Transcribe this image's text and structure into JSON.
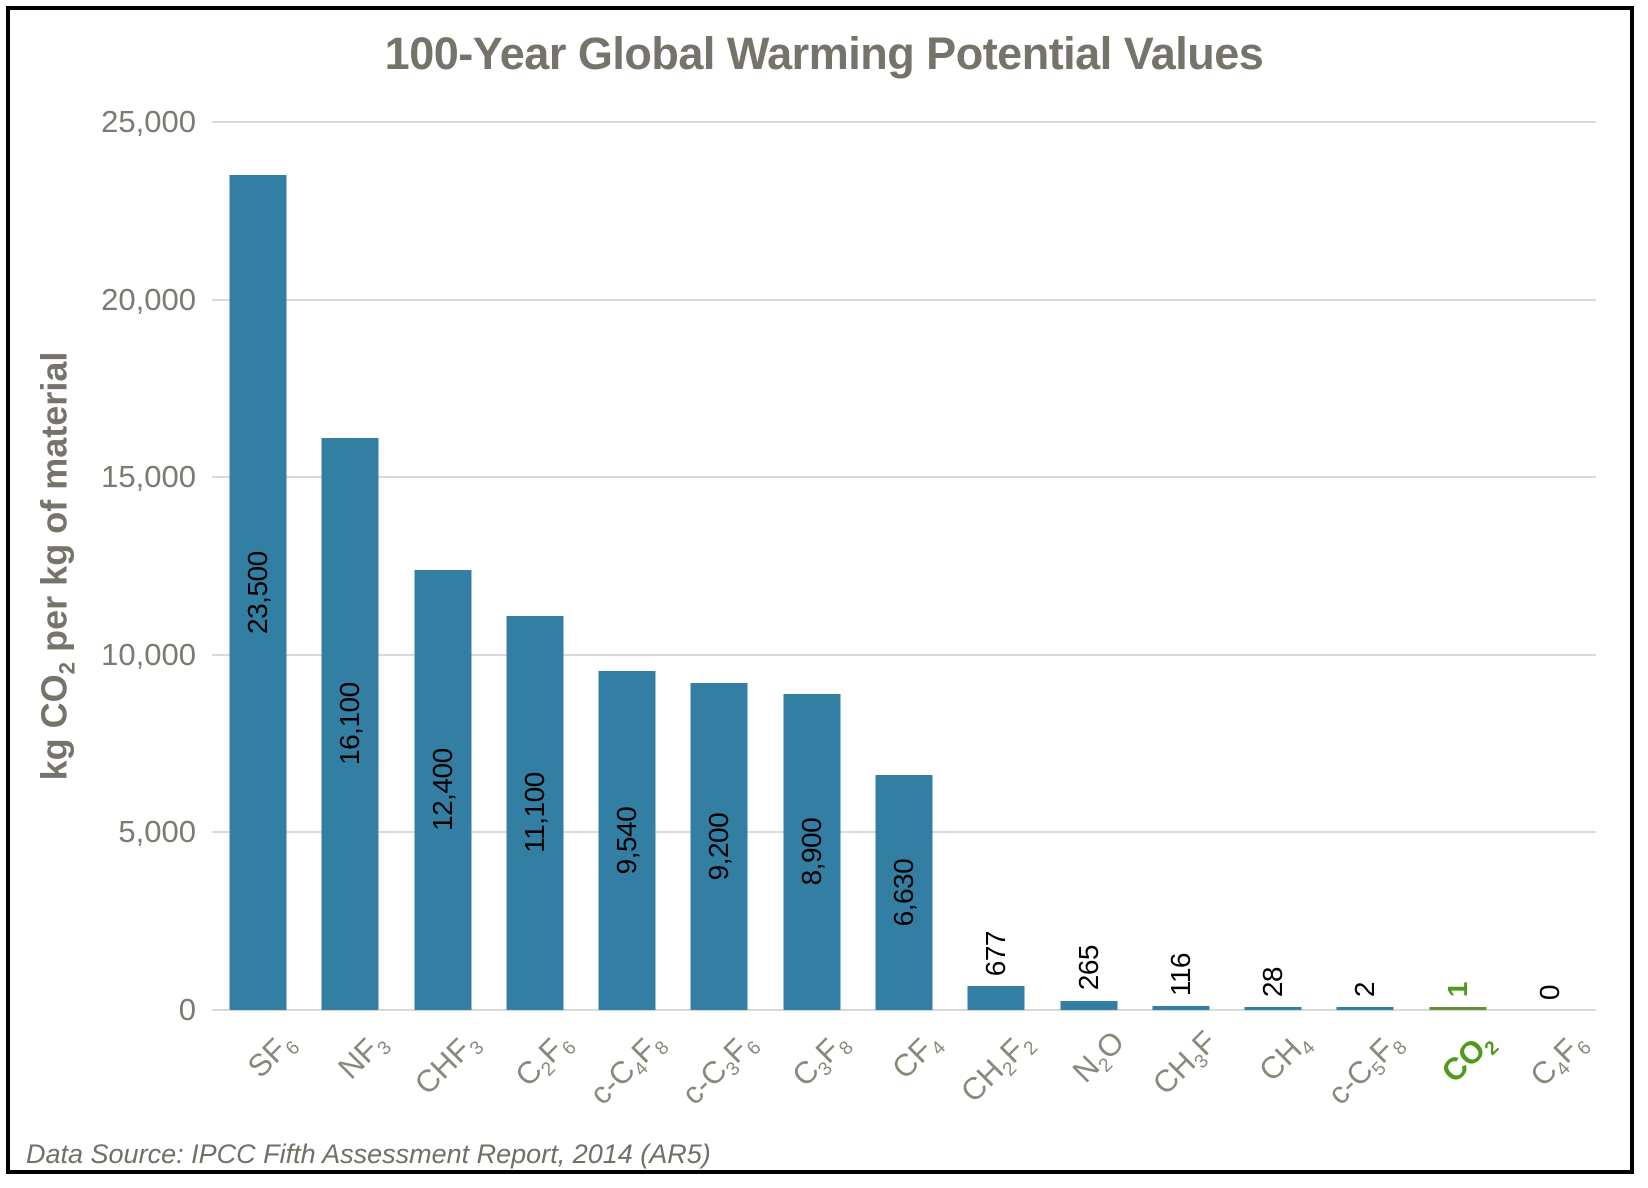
{
  "title": "100-Year Global Warming Potential Values",
  "footer": "Data Source: IPCC Fifth Assessment Report, 2014 (AR5)",
  "y_axis": {
    "label": "kg CO_2 per kg of material",
    "tick_labels": [
      "0",
      "5,000",
      "10,000",
      "15,000",
      "20,000",
      "25,000"
    ],
    "tick_values": [
      0,
      5000,
      10000,
      15000,
      20000,
      25000
    ]
  },
  "chart_data": {
    "type": "bar",
    "title": "100-Year Global Warming Potential Values",
    "xlabel": "",
    "ylabel": "kg CO2 per kg of material",
    "ylim": [
      0,
      25000
    ],
    "grid": true,
    "legend": "none",
    "categories": [
      "SF_6",
      "NF_3",
      "CHF_3",
      "C_2F_6",
      "c-C_4F_8",
      "c-C_3F_6",
      "C_3F_8",
      "CF_4",
      "CH_2F_2",
      "N_2O",
      "CH_3F",
      "CH_4",
      "c-C_5F_8",
      "CO_2",
      "C_4F_6"
    ],
    "values": [
      23500,
      16100,
      12400,
      11100,
      9540,
      9200,
      8900,
      6630,
      677,
      265,
      116,
      28,
      2,
      1,
      0
    ],
    "value_labels": [
      "23,500",
      "16,100",
      "12,400",
      "11,100",
      "9,540",
      "9,200",
      "8,900",
      "6,630",
      "677",
      "265",
      "116",
      "28",
      "2",
      "1",
      "0"
    ],
    "highlight_index": 13,
    "label_inside_threshold": 3000,
    "colors": {
      "bar": "#337FA3",
      "highlight_bar": "#639133",
      "highlight_text": "#4E9A1E",
      "value_label": "#000000",
      "title_text": "#75736A",
      "y_tick_text": "#7C7A71",
      "x_tick_text": "#8A887D",
      "gridline": "#D9D9D9",
      "source_text": "#716F66",
      "frame_border": "#000000"
    }
  }
}
